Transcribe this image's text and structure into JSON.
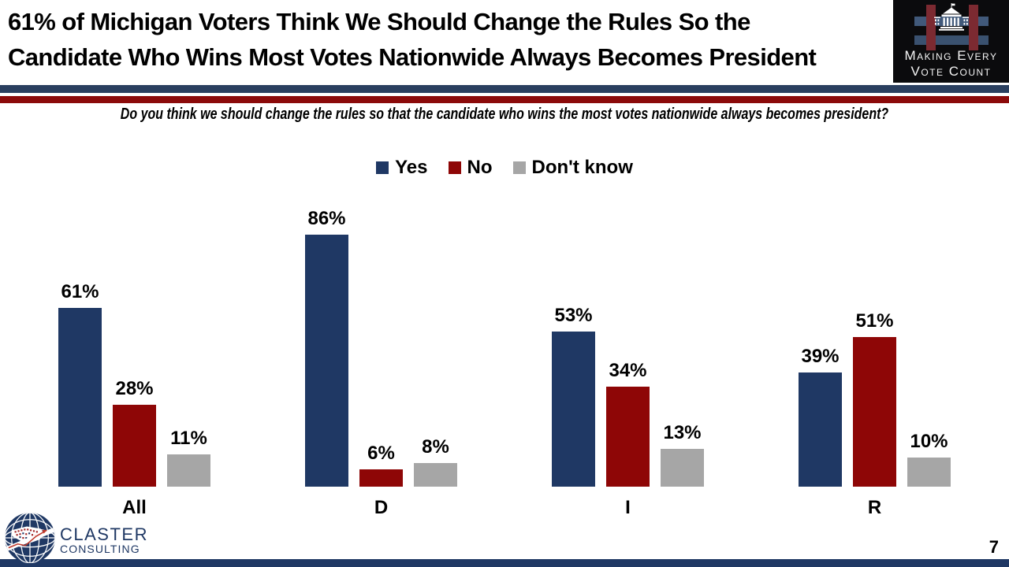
{
  "header": {
    "title_line1": "61% of Michigan Voters Think We Should Change the Rules So the",
    "title_line2": "Candidate Who Wins Most Votes Nationwide Always Becomes President",
    "mevc_logo": {
      "line1": "Making Every",
      "line2": "Vote Count"
    }
  },
  "question": {
    "text": "Do you think we should change the rules so that the candidate who wins the most votes nationwide always becomes president?"
  },
  "chart_data": {
    "type": "bar",
    "categories": [
      "All",
      "D",
      "I",
      "R"
    ],
    "series": [
      {
        "name": "Yes",
        "color": "#1F3864",
        "values": [
          61,
          86,
          53,
          39
        ]
      },
      {
        "name": "No",
        "color": "#8E0606",
        "values": [
          28,
          6,
          34,
          51
        ]
      },
      {
        "name": "Don't know",
        "color": "#A6A6A6",
        "values": [
          11,
          8,
          13,
          10
        ]
      }
    ],
    "value_suffix": "%",
    "ylim": [
      0,
      100
    ],
    "grid": false,
    "legend_position": "top",
    "data_labels": true,
    "xlabel": "",
    "ylabel": ""
  },
  "colors": {
    "divider_blue": "#2A3F5F",
    "divider_red": "#8B0A0A",
    "bottom_bar": "#1F3864"
  },
  "footer": {
    "claster_logo": {
      "name": "CLASTER",
      "subname": "CONSULTING"
    },
    "page_number": "7"
  }
}
